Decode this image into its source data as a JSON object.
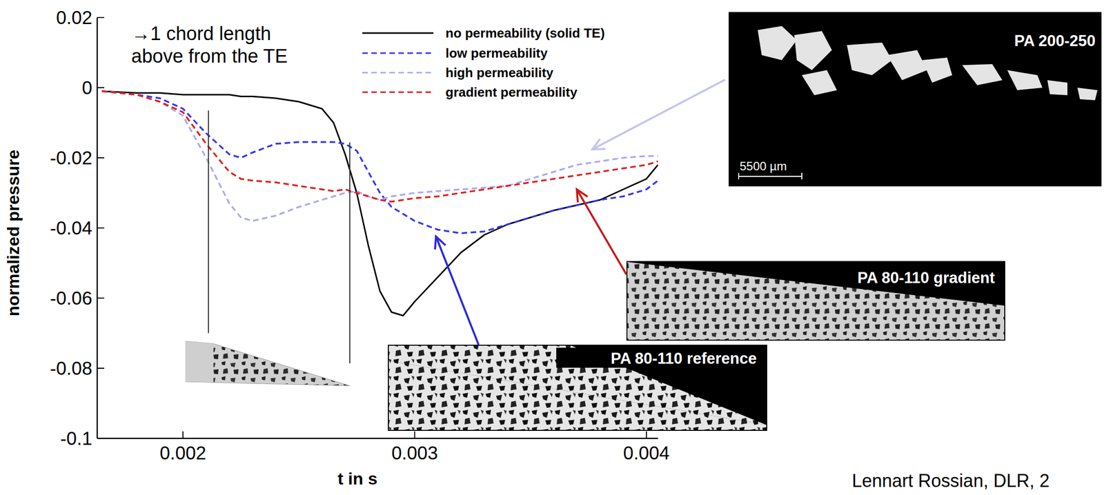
{
  "chart_data": {
    "type": "line",
    "x_label": "t in s",
    "y_label": "normalized pressure",
    "xlim": [
      0.00163,
      0.00405
    ],
    "ylim": [
      -0.1,
      0.02
    ],
    "xticks": [
      0.002,
      0.003,
      0.004
    ],
    "yticks": [
      -0.1,
      -0.08,
      -0.06,
      -0.04,
      -0.02,
      0,
      0.02
    ],
    "legend": "top",
    "annotation": [
      "→1 chord length",
      "above from the TE"
    ],
    "credit": "Lennart Rossian, DLR, 2",
    "images": [
      {
        "label": "PA 200-250",
        "scale_bar": "5500 µm"
      },
      {
        "label": "PA 80-110 gradient"
      },
      {
        "label": "PA 80-110 reference"
      }
    ],
    "vlines": [
      {
        "x": 0.00211,
        "y": [
          -0.0065,
          -0.07
        ]
      },
      {
        "x": 0.00272,
        "y": [
          -0.0156,
          -0.0786
        ]
      }
    ],
    "x": [
      0.00165,
      0.0018,
      0.0019,
      0.002,
      0.0021,
      0.0022,
      0.00225,
      0.0023,
      0.0024,
      0.0025,
      0.0026,
      0.00265,
      0.0027,
      0.00275,
      0.0028,
      0.00285,
      0.0029,
      0.00295,
      0.003,
      0.0031,
      0.0032,
      0.0033,
      0.0034,
      0.0035,
      0.0036,
      0.0037,
      0.0038,
      0.0039,
      0.004,
      0.00405
    ],
    "series": [
      {
        "name": "no permeability (solid TE)",
        "color": "#000000",
        "line_style": "solid",
        "values": [
          -0.001,
          -0.0015,
          -0.0015,
          -0.002,
          -0.002,
          -0.002,
          -0.0025,
          -0.0025,
          -0.003,
          -0.004,
          -0.006,
          -0.01,
          -0.019,
          -0.03,
          -0.045,
          -0.058,
          -0.064,
          -0.065,
          -0.061,
          -0.054,
          -0.047,
          -0.042,
          -0.039,
          -0.037,
          -0.035,
          -0.0335,
          -0.032,
          -0.029,
          -0.026,
          -0.022
        ]
      },
      {
        "name": "low permeability",
        "color": "#3535ee",
        "line_style": "dashed",
        "values": [
          -0.001,
          -0.002,
          -0.003,
          -0.006,
          -0.013,
          -0.019,
          -0.02,
          -0.0185,
          -0.016,
          -0.0155,
          -0.0155,
          -0.0155,
          -0.016,
          -0.018,
          -0.024,
          -0.03,
          -0.034,
          -0.036,
          -0.038,
          -0.0405,
          -0.0415,
          -0.041,
          -0.039,
          -0.037,
          -0.035,
          -0.0335,
          -0.032,
          -0.031,
          -0.029,
          -0.0265
        ]
      },
      {
        "name": "high permeability",
        "color": "#a9a9f2",
        "line_style": "dashed",
        "values": [
          -0.001,
          -0.002,
          -0.004,
          -0.008,
          -0.02,
          -0.033,
          -0.037,
          -0.038,
          -0.0365,
          -0.034,
          -0.032,
          -0.031,
          -0.03,
          -0.0295,
          -0.031,
          -0.032,
          -0.031,
          -0.0305,
          -0.03,
          -0.0295,
          -0.029,
          -0.0285,
          -0.028,
          -0.026,
          -0.024,
          -0.022,
          -0.021,
          -0.02,
          -0.0195,
          -0.0195
        ]
      },
      {
        "name": "gradient permeability",
        "color": "#e01f1f",
        "line_style": "dashed",
        "values": [
          -0.001,
          -0.002,
          -0.004,
          -0.007,
          -0.016,
          -0.024,
          -0.026,
          -0.0265,
          -0.027,
          -0.028,
          -0.029,
          -0.0295,
          -0.029,
          -0.03,
          -0.031,
          -0.032,
          -0.0325,
          -0.032,
          -0.0315,
          -0.031,
          -0.03,
          -0.029,
          -0.028,
          -0.027,
          -0.026,
          -0.025,
          -0.024,
          -0.023,
          -0.022,
          -0.021
        ]
      }
    ]
  }
}
